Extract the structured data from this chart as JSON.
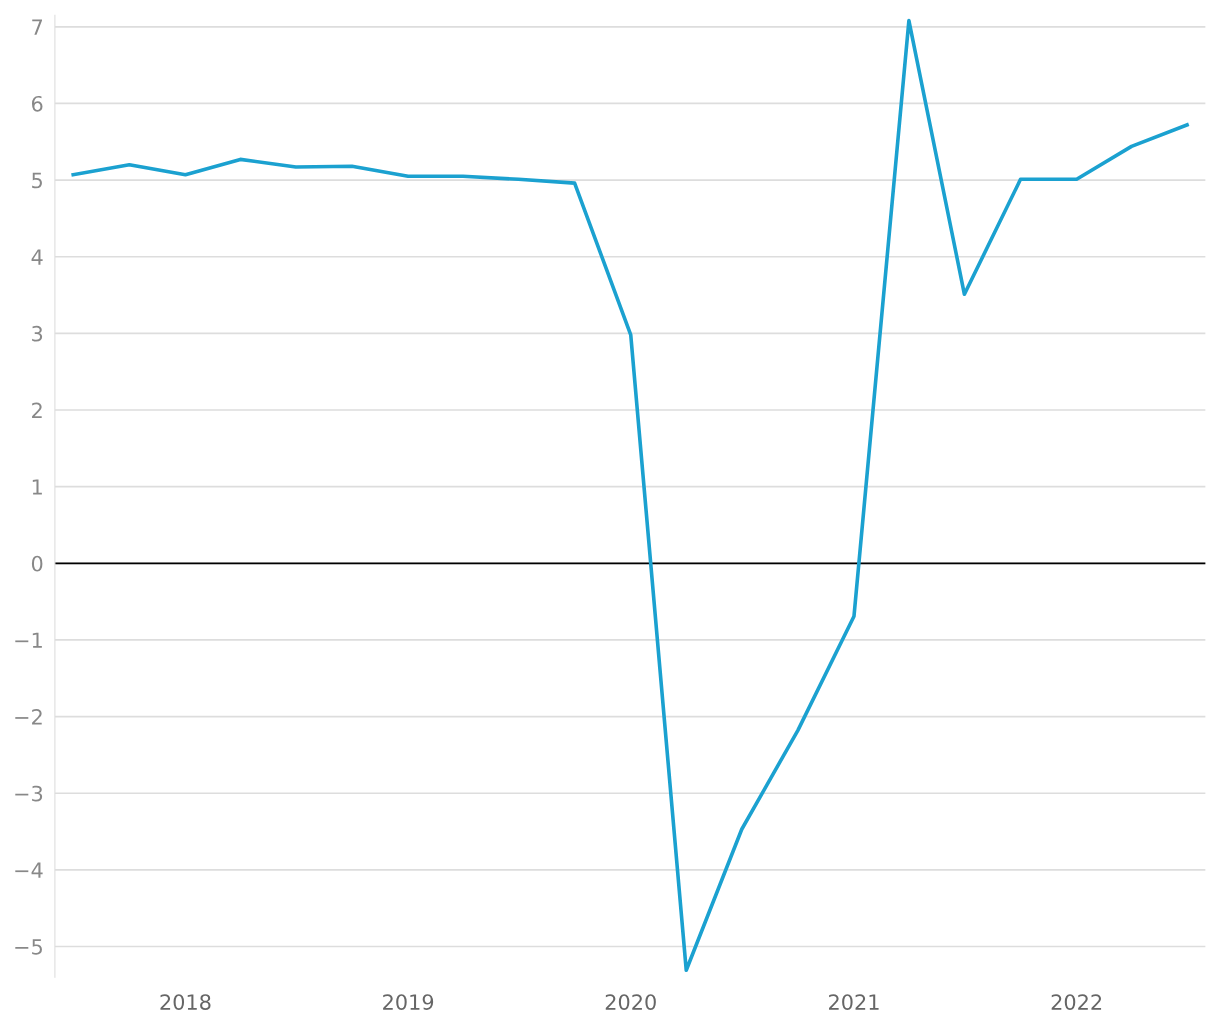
{
  "chart_data": {
    "type": "line",
    "x": [
      "2017-07",
      "2017-10",
      "2018-01",
      "2018-04",
      "2018-07",
      "2018-10",
      "2019-01",
      "2019-04",
      "2019-07",
      "2019-10",
      "2020-01",
      "2020-04",
      "2020-07",
      "2020-10",
      "2021-01",
      "2021-04",
      "2021-07",
      "2021-10",
      "2022-01",
      "2022-04",
      "2022-07"
    ],
    "series": [
      {
        "color": "#1ba1d0",
        "values": [
          5.07,
          5.2,
          5.07,
          5.27,
          5.17,
          5.18,
          5.05,
          5.05,
          5.01,
          4.96,
          2.98,
          -5.31,
          -3.47,
          -2.18,
          -0.69,
          7.08,
          3.51,
          5.01,
          5.01,
          5.44,
          5.72
        ]
      }
    ],
    "xlim": [
      "2017-06-01",
      "2022-07-31"
    ],
    "xticks": [
      {
        "value": "2018-01",
        "label": "2018"
      },
      {
        "value": "2019-01",
        "label": "2019"
      },
      {
        "value": "2020-01",
        "label": "2020"
      },
      {
        "value": "2021-01",
        "label": "2021"
      },
      {
        "value": "2022-01",
        "label": "2022"
      }
    ],
    "ylim": [
      -5.4,
      7.15
    ],
    "yticks": [
      {
        "value": -5,
        "label": "−5"
      },
      {
        "value": -4,
        "label": "−4"
      },
      {
        "value": -3,
        "label": "−3"
      },
      {
        "value": -2,
        "label": "−2"
      },
      {
        "value": -1,
        "label": "−1"
      },
      0,
      1,
      2,
      3,
      4,
      5,
      6,
      7
    ],
    "ref_lines": [
      {
        "axis": "y",
        "value": 0,
        "color": "#000000"
      }
    ],
    "grid": "y",
    "marker": "none",
    "line_style": "solid"
  }
}
